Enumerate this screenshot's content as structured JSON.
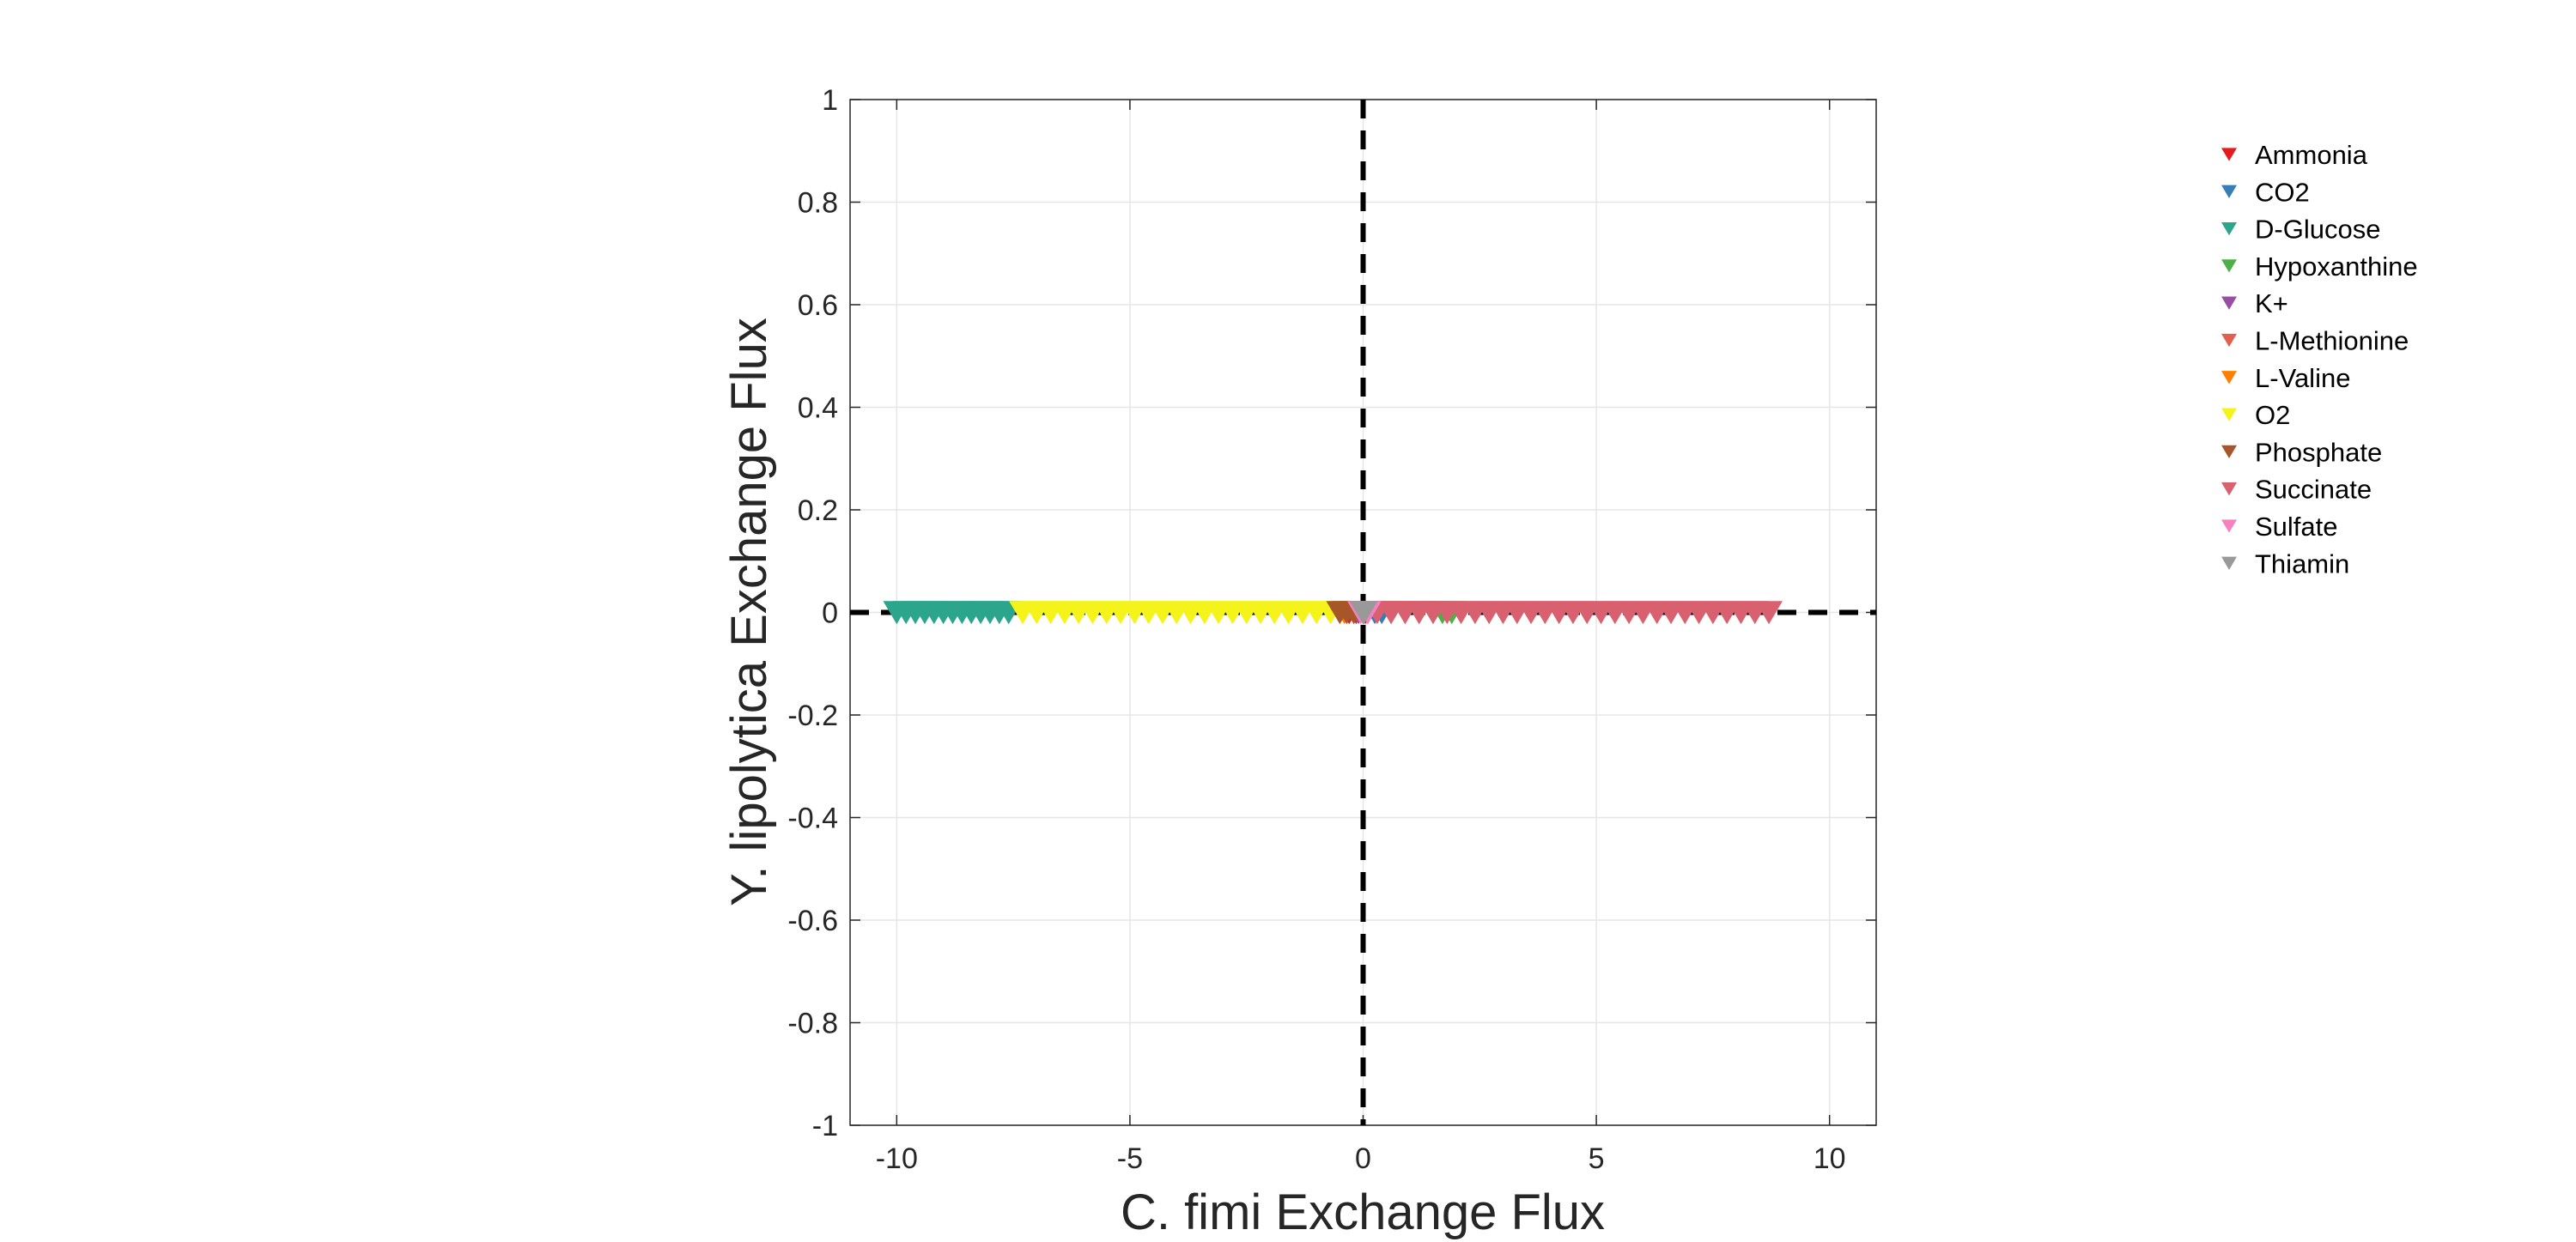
{
  "chart_data": {
    "type": "scatter",
    "title": "",
    "xlabel": "C. fimi Exchange Flux",
    "ylabel": "Y. lipolytica Exchange Flux",
    "xlim": [
      -11,
      11
    ],
    "ylim": [
      -1,
      1
    ],
    "xticks": [
      -10,
      -5,
      0,
      5,
      10
    ],
    "yticks": [
      -1,
      -0.8,
      -0.6,
      -0.4,
      -0.2,
      0,
      0.2,
      0.4,
      0.6,
      0.8,
      1
    ],
    "grid": true,
    "marker": "downward-triangle",
    "reference_lines": [
      {
        "orientation": "vertical",
        "value": 0,
        "style": "dashed",
        "color": "#000000"
      },
      {
        "orientation": "horizontal",
        "value": 0,
        "style": "dashed",
        "color": "#000000"
      }
    ],
    "legend_position": "outside-right",
    "series": [
      {
        "name": "Ammonia",
        "color": "#e41a1c",
        "points": [
          [
            -0.3,
            0
          ],
          [
            -0.15,
            0
          ],
          [
            0.05,
            0
          ]
        ]
      },
      {
        "name": "CO2",
        "color": "#377eb8",
        "points": [
          [
            0.1,
            0
          ],
          [
            0.25,
            0
          ],
          [
            0.4,
            0
          ]
        ]
      },
      {
        "name": "D-Glucose",
        "color": "#2ca58d",
        "points": [
          [
            -10,
            0
          ],
          [
            -9.8,
            0
          ],
          [
            -9.6,
            0
          ],
          [
            -9.4,
            0
          ],
          [
            -9.2,
            0
          ],
          [
            -9.0,
            0
          ],
          [
            -8.8,
            0
          ],
          [
            -8.6,
            0
          ],
          [
            -8.4,
            0
          ],
          [
            -8.2,
            0
          ],
          [
            -8.0,
            0
          ],
          [
            -7.8,
            0
          ],
          [
            -7.6,
            0
          ]
        ]
      },
      {
        "name": "Hypoxanthine",
        "color": "#4daf4a",
        "points": [
          [
            1.5,
            0
          ],
          [
            1.7,
            0
          ],
          [
            1.9,
            0
          ]
        ]
      },
      {
        "name": "K+",
        "color": "#984ea3",
        "points": [
          [
            -0.1,
            0
          ],
          [
            0.0,
            0
          ]
        ]
      },
      {
        "name": "L-Methionine",
        "color": "#e4604e",
        "points": [
          [
            0.6,
            0
          ],
          [
            0.9,
            0
          ],
          [
            1.2,
            0
          ]
        ]
      },
      {
        "name": "L-Valine",
        "color": "#ff7f00",
        "points": [
          [
            -0.4,
            0
          ],
          [
            -0.2,
            0
          ]
        ]
      },
      {
        "name": "O2",
        "color": "#f4f41a",
        "points": [
          [
            -7.3,
            0
          ],
          [
            -7.0,
            0
          ],
          [
            -6.7,
            0
          ],
          [
            -6.4,
            0
          ],
          [
            -6.1,
            0
          ],
          [
            -5.8,
            0
          ],
          [
            -5.5,
            0
          ],
          [
            -5.2,
            0
          ],
          [
            -4.9,
            0
          ],
          [
            -4.6,
            0
          ],
          [
            -4.3,
            0
          ],
          [
            -4.0,
            0
          ],
          [
            -3.7,
            0
          ],
          [
            -3.4,
            0
          ],
          [
            -3.1,
            0
          ],
          [
            -2.8,
            0
          ],
          [
            -2.5,
            0
          ],
          [
            -2.2,
            0
          ],
          [
            -1.9,
            0
          ],
          [
            -1.6,
            0
          ],
          [
            -1.3,
            0
          ],
          [
            -1.0,
            0
          ],
          [
            -0.7,
            0
          ]
        ]
      },
      {
        "name": "Phosphate",
        "color": "#a65628",
        "points": [
          [
            -0.5,
            0
          ],
          [
            -0.35,
            0
          ],
          [
            -0.2,
            0
          ]
        ]
      },
      {
        "name": "Succinate",
        "color": "#d9606e",
        "points": [
          [
            0.3,
            0
          ],
          [
            0.6,
            0
          ],
          [
            0.9,
            0
          ],
          [
            1.2,
            0
          ],
          [
            1.5,
            0
          ],
          [
            1.8,
            0
          ],
          [
            2.1,
            0
          ],
          [
            2.4,
            0
          ],
          [
            2.7,
            0
          ],
          [
            3.0,
            0
          ],
          [
            3.3,
            0
          ],
          [
            3.6,
            0
          ],
          [
            3.9,
            0
          ],
          [
            4.2,
            0
          ],
          [
            4.5,
            0
          ],
          [
            4.8,
            0
          ],
          [
            5.1,
            0
          ],
          [
            5.4,
            0
          ],
          [
            5.7,
            0
          ],
          [
            6.0,
            0
          ],
          [
            6.3,
            0
          ],
          [
            6.6,
            0
          ],
          [
            6.9,
            0
          ],
          [
            7.2,
            0
          ],
          [
            7.5,
            0
          ],
          [
            7.8,
            0
          ],
          [
            8.1,
            0
          ],
          [
            8.4,
            0
          ],
          [
            8.7,
            0
          ]
        ]
      },
      {
        "name": "Sulfate",
        "color": "#f781bf",
        "points": [
          [
            -0.05,
            0
          ],
          [
            0.1,
            0
          ]
        ]
      },
      {
        "name": "Thiamin",
        "color": "#999999",
        "points": [
          [
            0.0,
            0
          ],
          [
            0.02,
            0
          ]
        ]
      }
    ]
  }
}
